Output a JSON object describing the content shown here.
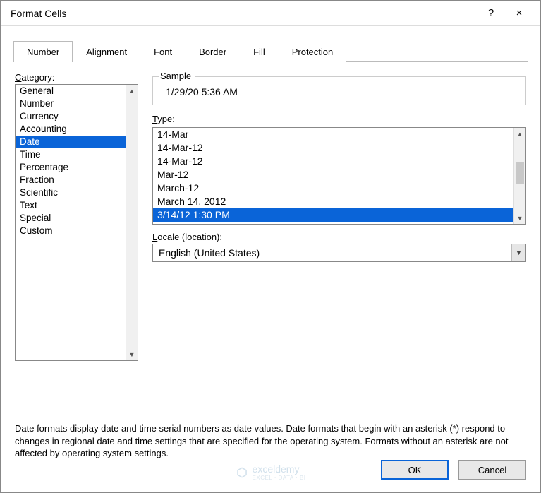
{
  "window": {
    "title": "Format Cells",
    "help_icon": "?",
    "close_icon": "×"
  },
  "tabs": [
    {
      "label": "Number",
      "active": true
    },
    {
      "label": "Alignment",
      "active": false
    },
    {
      "label": "Font",
      "active": false
    },
    {
      "label": "Border",
      "active": false
    },
    {
      "label": "Fill",
      "active": false
    },
    {
      "label": "Protection",
      "active": false
    }
  ],
  "category": {
    "label": "Category:",
    "label_underline_char": "C",
    "items": [
      {
        "label": "General",
        "selected": false
      },
      {
        "label": "Number",
        "selected": false
      },
      {
        "label": "Currency",
        "selected": false
      },
      {
        "label": "Accounting",
        "selected": false
      },
      {
        "label": "Date",
        "selected": true
      },
      {
        "label": "Time",
        "selected": false
      },
      {
        "label": "Percentage",
        "selected": false
      },
      {
        "label": "Fraction",
        "selected": false
      },
      {
        "label": "Scientific",
        "selected": false
      },
      {
        "label": "Text",
        "selected": false
      },
      {
        "label": "Special",
        "selected": false
      },
      {
        "label": "Custom",
        "selected": false
      }
    ]
  },
  "sample": {
    "label": "Sample",
    "value": "1/29/20 5:36 AM"
  },
  "type": {
    "label": "Type:",
    "label_underline_char": "T",
    "items": [
      {
        "label": "14-Mar",
        "selected": false
      },
      {
        "label": "14-Mar-12",
        "selected": false
      },
      {
        "label": "14-Mar-12",
        "selected": false
      },
      {
        "label": "Mar-12",
        "selected": false
      },
      {
        "label": "March-12",
        "selected": false
      },
      {
        "label": "March 14, 2012",
        "selected": false
      },
      {
        "label": "3/14/12 1:30 PM",
        "selected": true
      }
    ],
    "scroll": {
      "thumb_top_pct": 36,
      "thumb_height_pct": 22
    }
  },
  "locale": {
    "label": "Locale (location):",
    "label_underline_char": "L",
    "value": "English (United States)"
  },
  "description": "Date formats display date and time serial numbers as date values.  Date formats that begin with an asterisk (*) respond to changes in regional date and time settings that are specified for the operating system. Formats without an asterisk are not affected by operating system settings.",
  "buttons": {
    "ok": "OK",
    "cancel": "Cancel"
  },
  "watermark": {
    "brand": "exceldemy",
    "tagline": "EXCEL · DATA · BI"
  },
  "colors": {
    "selection": "#0a64d8",
    "border": "#888888",
    "background": "#ffffff",
    "btn_bg": "#e8e8e8"
  }
}
